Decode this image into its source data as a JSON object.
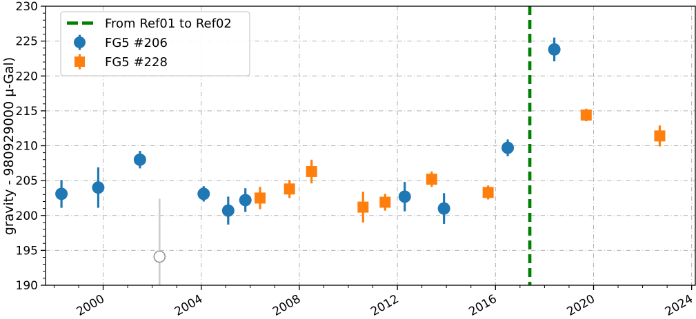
{
  "chart_data": {
    "type": "scatter",
    "title": "",
    "xlabel": "",
    "ylabel": "gravity - 980929000 μ-Gal)",
    "xlim": [
      1997.65,
      2024.15
    ],
    "ylim": [
      190,
      230
    ],
    "xticks": [
      2000,
      2004,
      2008,
      2012,
      2016,
      2020,
      2024
    ],
    "yticks": [
      190,
      195,
      200,
      205,
      210,
      215,
      220,
      225,
      230
    ],
    "minor_x_step": 1,
    "minor_y_step": 1,
    "grid": true,
    "grid_style": "dash-dot",
    "grid_color": "#b0b0b0",
    "axis_color": "#000000",
    "legend_position": "upper-left",
    "reference_line": {
      "label": "From Ref01 to Ref02",
      "orientation": "vertical",
      "x": 2017.4,
      "color": "#008000",
      "style": "dashed"
    },
    "series": [
      {
        "name": "FG5 #206",
        "marker": "circle",
        "color": "#1f77b4",
        "points": [
          {
            "x": 1998.3,
            "y": 203.1,
            "err": 2.0
          },
          {
            "x": 1999.8,
            "y": 204.0,
            "err": 2.9
          },
          {
            "x": 2001.5,
            "y": 208.0,
            "err": 1.25
          },
          {
            "x": 2004.1,
            "y": 203.1,
            "err": 1.1
          },
          {
            "x": 2005.1,
            "y": 200.7,
            "err": 2.0
          },
          {
            "x": 2005.8,
            "y": 202.2,
            "err": 1.7
          },
          {
            "x": 2012.3,
            "y": 202.7,
            "err": 2.1
          },
          {
            "x": 2013.9,
            "y": 201.0,
            "err": 2.2
          },
          {
            "x": 2016.5,
            "y": 209.7,
            "err": 1.2
          },
          {
            "x": 2018.4,
            "y": 223.8,
            "err": 1.7
          }
        ]
      },
      {
        "name": "FG5 #228",
        "marker": "square",
        "color": "#ff7f0e",
        "points": [
          {
            "x": 2006.4,
            "y": 202.5,
            "err": 1.6
          },
          {
            "x": 2007.6,
            "y": 203.8,
            "err": 1.3
          },
          {
            "x": 2008.5,
            "y": 206.3,
            "err": 1.7
          },
          {
            "x": 2010.6,
            "y": 201.2,
            "err": 2.2
          },
          {
            "x": 2011.5,
            "y": 201.9,
            "err": 1.2
          },
          {
            "x": 2013.4,
            "y": 205.2,
            "err": 1.1
          },
          {
            "x": 2015.7,
            "y": 203.3,
            "err": 1.0
          },
          {
            "x": 2019.7,
            "y": 214.4,
            "err": 0.9
          },
          {
            "x": 2022.7,
            "y": 211.4,
            "err": 1.5
          }
        ]
      }
    ],
    "outlier": {
      "marker": "open-circle",
      "edge_color": "#949494",
      "bar_color": "#cccccc",
      "x": 2002.3,
      "y": 194.1,
      "err": 8.3
    }
  }
}
